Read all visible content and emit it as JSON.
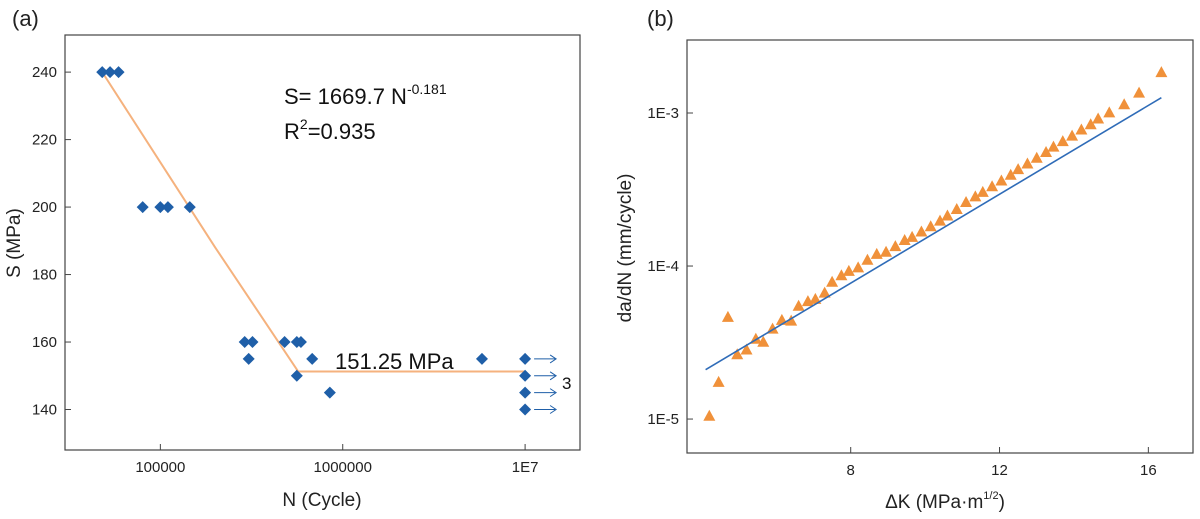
{
  "chart_data": [
    {
      "type": "scatter",
      "panel_label": "(a)",
      "xlabel": "N (Cycle)",
      "ylabel": "S (MPa)",
      "xscale": "log",
      "xlim": [
        30000,
        20000000
      ],
      "ylim": [
        128,
        251
      ],
      "xticks": [
        {
          "value": 100000,
          "label": "100000"
        },
        {
          "value": 1000000,
          "label": "1000000"
        },
        {
          "value": 10000000,
          "label": "1E7"
        }
      ],
      "yticks": [
        140,
        160,
        180,
        200,
        220,
        240
      ],
      "points": [
        {
          "x": 48000,
          "y": 240
        },
        {
          "x": 53000,
          "y": 240
        },
        {
          "x": 59000,
          "y": 240
        },
        {
          "x": 80000,
          "y": 200
        },
        {
          "x": 100000,
          "y": 200
        },
        {
          "x": 110000,
          "y": 200
        },
        {
          "x": 145000,
          "y": 200
        },
        {
          "x": 290000,
          "y": 160
        },
        {
          "x": 320000,
          "y": 160
        },
        {
          "x": 305000,
          "y": 155
        },
        {
          "x": 480000,
          "y": 160
        },
        {
          "x": 560000,
          "y": 160
        },
        {
          "x": 590000,
          "y": 160
        },
        {
          "x": 560000,
          "y": 150
        },
        {
          "x": 680000,
          "y": 155
        },
        {
          "x": 850000,
          "y": 145
        },
        {
          "x": 5800000,
          "y": 155
        }
      ],
      "runouts": [
        {
          "x": 10000000,
          "y": 155
        },
        {
          "x": 10000000,
          "y": 150
        },
        {
          "x": 10000000,
          "y": 145
        },
        {
          "x": 10000000,
          "y": 140
        }
      ],
      "runout_count": "3",
      "fit": {
        "sloped": [
          {
            "x": 48000,
            "y": 240
          },
          {
            "x": 200000,
            "y": 188
          },
          {
            "x": 570000,
            "y": 151.25
          }
        ],
        "flat": [
          {
            "x": 570000,
            "y": 151.25
          },
          {
            "x": 10000000,
            "y": 151.25
          }
        ]
      },
      "annotations": {
        "equation_base": "S= 1669.7 N",
        "equation_exponent": "-0.181",
        "r2_prefix": "R",
        "r2_exponent": "2",
        "r2_value": "=0.935",
        "limit_label": "151.25 MPa"
      },
      "colors": {
        "marker": "#1f5fa8",
        "fit": "#f5b27e"
      }
    },
    {
      "type": "scatter",
      "panel_label": "(b)",
      "xlabel_main": "ΔK (MPa·m",
      "xlabel_exponent": "1/2",
      "xlabel_close": ")",
      "ylabel": "da/dN (mm/cycle)",
      "yscale": "log",
      "xlim": [
        3.6,
        17.2
      ],
      "ylim": [
        6e-06,
        0.003
      ],
      "xticks": [
        {
          "value": 8,
          "label": "8"
        },
        {
          "value": 12,
          "label": "12"
        },
        {
          "value": 16,
          "label": "16"
        }
      ],
      "yticks": [
        {
          "value": 1e-05,
          "label": "1E-5"
        },
        {
          "value": 0.0001,
          "label": "1E-4"
        },
        {
          "value": 0.001,
          "label": "1E-3"
        }
      ],
      "points": [
        {
          "x": 4.2,
          "y": 1.05e-05
        },
        {
          "x": 4.45,
          "y": 1.75e-05
        },
        {
          "x": 4.7,
          "y": 4.65e-05
        },
        {
          "x": 4.95,
          "y": 2.65e-05
        },
        {
          "x": 5.2,
          "y": 2.85e-05
        },
        {
          "x": 5.45,
          "y": 3.35e-05
        },
        {
          "x": 5.65,
          "y": 3.2e-05
        },
        {
          "x": 5.9,
          "y": 3.9e-05
        },
        {
          "x": 6.15,
          "y": 4.45e-05
        },
        {
          "x": 6.4,
          "y": 4.4e-05
        },
        {
          "x": 6.6,
          "y": 5.5e-05
        },
        {
          "x": 6.85,
          "y": 5.9e-05
        },
        {
          "x": 7.05,
          "y": 6.1e-05
        },
        {
          "x": 7.3,
          "y": 6.7e-05
        },
        {
          "x": 7.5,
          "y": 7.9e-05
        },
        {
          "x": 7.75,
          "y": 8.7e-05
        },
        {
          "x": 7.95,
          "y": 9.3e-05
        },
        {
          "x": 8.2,
          "y": 9.8e-05
        },
        {
          "x": 8.45,
          "y": 0.00011
        },
        {
          "x": 8.7,
          "y": 0.00012
        },
        {
          "x": 8.95,
          "y": 0.000124
        },
        {
          "x": 9.2,
          "y": 0.000135
        },
        {
          "x": 9.45,
          "y": 0.000148
        },
        {
          "x": 9.65,
          "y": 0.000155
        },
        {
          "x": 9.9,
          "y": 0.000168
        },
        {
          "x": 10.15,
          "y": 0.000182
        },
        {
          "x": 10.4,
          "y": 0.000198
        },
        {
          "x": 10.6,
          "y": 0.000214
        },
        {
          "x": 10.85,
          "y": 0.000236
        },
        {
          "x": 11.1,
          "y": 0.000262
        },
        {
          "x": 11.35,
          "y": 0.000285
        },
        {
          "x": 11.55,
          "y": 0.000305
        },
        {
          "x": 11.8,
          "y": 0.000332
        },
        {
          "x": 12.05,
          "y": 0.000362
        },
        {
          "x": 12.3,
          "y": 0.000395
        },
        {
          "x": 12.5,
          "y": 0.00043
        },
        {
          "x": 12.75,
          "y": 0.000468
        },
        {
          "x": 13.0,
          "y": 0.00051
        },
        {
          "x": 13.25,
          "y": 0.000556
        },
        {
          "x": 13.45,
          "y": 0.000603
        },
        {
          "x": 13.7,
          "y": 0.000655
        },
        {
          "x": 13.95,
          "y": 0.000712
        },
        {
          "x": 14.2,
          "y": 0.00078
        },
        {
          "x": 14.45,
          "y": 0.000845
        },
        {
          "x": 14.65,
          "y": 0.00092
        },
        {
          "x": 14.95,
          "y": 0.00101
        },
        {
          "x": 15.35,
          "y": 0.00114
        },
        {
          "x": 15.75,
          "y": 0.00136
        },
        {
          "x": 16.35,
          "y": 0.00185
        }
      ],
      "fit": [
        {
          "x": 4.1,
          "y": 2.1e-05
        },
        {
          "x": 16.35,
          "y": 0.00126
        }
      ],
      "colors": {
        "marker": "#f0913a",
        "fit": "#2f6cb8"
      }
    }
  ]
}
